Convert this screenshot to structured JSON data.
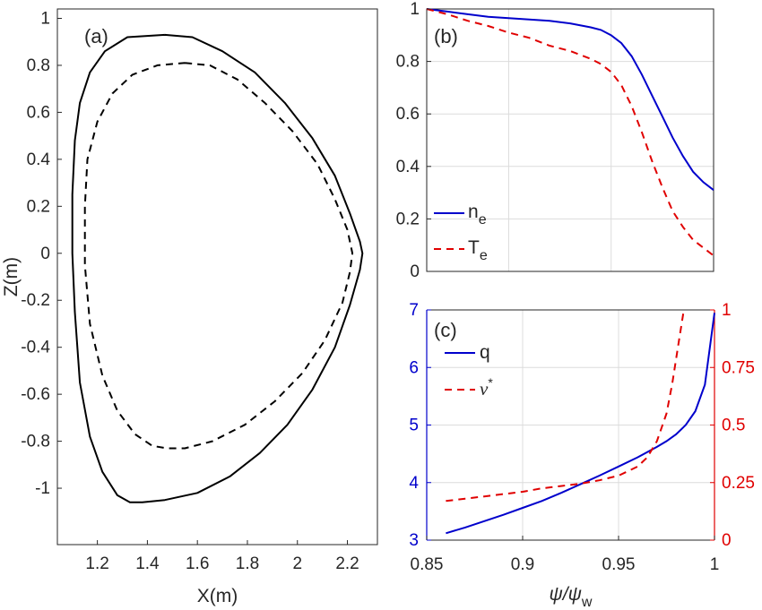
{
  "chart_data": [
    {
      "panel": "(a)",
      "type": "line",
      "xlabel": "X(m)",
      "ylabel": "Z(m)",
      "xlim": [
        1.04,
        2.32
      ],
      "ylim": [
        -1.24,
        1.04
      ],
      "xticks": [
        "1.2",
        "1.4",
        "1.6",
        "1.8",
        "2",
        "2.2"
      ],
      "yticks": [
        "1",
        "0.8",
        "0.6",
        "0.4",
        "0.2",
        "0",
        "-0.2",
        "-0.4",
        "-0.6",
        "-0.8",
        "-1"
      ],
      "grid": false,
      "series": [
        {
          "style": "solid",
          "color": "#000000",
          "x": [
            1.47,
            1.58,
            1.7,
            1.83,
            1.95,
            2.06,
            2.15,
            2.21,
            2.25,
            2.26,
            2.25,
            2.21,
            2.15,
            2.06,
            1.96,
            1.85,
            1.73,
            1.6,
            1.47,
            1.38,
            1.33,
            1.28,
            1.22,
            1.17,
            1.13,
            1.11,
            1.1,
            1.1,
            1.11,
            1.13,
            1.17,
            1.23,
            1.32,
            1.47
          ],
          "y": [
            0.93,
            0.92,
            0.86,
            0.77,
            0.64,
            0.49,
            0.33,
            0.17,
            0.05,
            0.0,
            -0.07,
            -0.22,
            -0.4,
            -0.58,
            -0.73,
            -0.85,
            -0.95,
            -1.02,
            -1.05,
            -1.06,
            -1.06,
            -1.03,
            -0.93,
            -0.78,
            -0.55,
            -0.25,
            0.0,
            0.25,
            0.48,
            0.64,
            0.77,
            0.86,
            0.92,
            0.93
          ]
        },
        {
          "style": "dashed",
          "color": "#000000",
          "x": [
            1.55,
            1.65,
            1.76,
            1.87,
            1.98,
            2.08,
            2.15,
            2.2,
            2.22,
            2.21,
            2.18,
            2.11,
            2.02,
            1.91,
            1.79,
            1.66,
            1.55,
            1.48,
            1.42,
            1.35,
            1.28,
            1.22,
            1.17,
            1.15,
            1.15,
            1.16,
            1.2,
            1.26,
            1.34,
            1.44,
            1.55
          ],
          "y": [
            0.81,
            0.8,
            0.74,
            0.64,
            0.52,
            0.38,
            0.23,
            0.1,
            0.0,
            -0.08,
            -0.21,
            -0.37,
            -0.51,
            -0.63,
            -0.73,
            -0.8,
            -0.83,
            -0.83,
            -0.82,
            -0.77,
            -0.67,
            -0.52,
            -0.3,
            -0.05,
            0.2,
            0.4,
            0.56,
            0.68,
            0.76,
            0.8,
            0.81
          ]
        }
      ],
      "annotations": [
        "(a)"
      ]
    },
    {
      "panel": "(b)",
      "type": "line",
      "xlim": [
        0.86,
        1.0
      ],
      "ylim": [
        0,
        1
      ],
      "xticks": [],
      "yticks": [
        "1",
        "0.8",
        "0.6",
        "0.4",
        "0.2",
        "0"
      ],
      "grid": true,
      "legend_position": "bottom-left",
      "series": [
        {
          "name": "n",
          "name_sub": "e",
          "style": "solid",
          "color": "#0000cc",
          "x": [
            0.86,
            0.87,
            0.88,
            0.89,
            0.9,
            0.91,
            0.92,
            0.93,
            0.94,
            0.945,
            0.95,
            0.955,
            0.96,
            0.965,
            0.97,
            0.975,
            0.98,
            0.985,
            0.99,
            0.995,
            1.0
          ],
          "y": [
            1.0,
            0.99,
            0.98,
            0.97,
            0.965,
            0.96,
            0.955,
            0.945,
            0.93,
            0.92,
            0.9,
            0.87,
            0.82,
            0.75,
            0.67,
            0.59,
            0.51,
            0.44,
            0.38,
            0.34,
            0.31
          ]
        },
        {
          "name": "T",
          "name_sub": "e",
          "style": "dashed",
          "color": "#e00000",
          "x": [
            0.86,
            0.87,
            0.88,
            0.89,
            0.9,
            0.91,
            0.92,
            0.93,
            0.94,
            0.945,
            0.95,
            0.955,
            0.96,
            0.965,
            0.97,
            0.975,
            0.98,
            0.985,
            0.99,
            0.995,
            1.0
          ],
          "y": [
            1.0,
            0.98,
            0.955,
            0.935,
            0.91,
            0.89,
            0.86,
            0.84,
            0.81,
            0.79,
            0.76,
            0.71,
            0.63,
            0.53,
            0.42,
            0.32,
            0.23,
            0.17,
            0.12,
            0.09,
            0.06
          ]
        }
      ],
      "annotations": [
        "(b)"
      ]
    },
    {
      "panel": "(c)",
      "type": "line",
      "xlabel": "ψ/ψ",
      "xlabel_sub": "w",
      "xlim": [
        0.85,
        1.0
      ],
      "ylim_left": [
        3,
        7
      ],
      "ylim_right": [
        0,
        1
      ],
      "xticks": [
        "0.85",
        "0.9",
        "0.95",
        "1"
      ],
      "yticks_left": [
        "7",
        "6",
        "5",
        "4",
        "3"
      ],
      "yticks_right": [
        "1",
        "0.75",
        "0.5",
        "0.25",
        "0"
      ],
      "grid": true,
      "legend_position": "top-left",
      "series": [
        {
          "name": "q",
          "axis": "left",
          "style": "solid",
          "color": "#0000cc",
          "x": [
            0.86,
            0.87,
            0.88,
            0.89,
            0.9,
            0.91,
            0.92,
            0.93,
            0.94,
            0.95,
            0.96,
            0.97,
            0.975,
            0.98,
            0.985,
            0.99,
            0.995,
            1.0
          ],
          "y": [
            3.12,
            3.22,
            3.33,
            3.44,
            3.56,
            3.68,
            3.82,
            3.97,
            4.12,
            4.28,
            4.44,
            4.62,
            4.72,
            4.84,
            5.0,
            5.24,
            5.7,
            6.95
          ]
        },
        {
          "name": "ν",
          "name_sup": "*",
          "axis": "right",
          "style": "dashed",
          "color": "#e00000",
          "x": [
            0.86,
            0.87,
            0.88,
            0.89,
            0.9,
            0.91,
            0.92,
            0.93,
            0.94,
            0.95,
            0.96,
            0.965,
            0.97,
            0.975,
            0.978,
            0.981,
            0.984
          ],
          "y": [
            0.17,
            0.18,
            0.19,
            0.2,
            0.21,
            0.225,
            0.235,
            0.245,
            0.26,
            0.28,
            0.32,
            0.36,
            0.43,
            0.55,
            0.68,
            0.84,
            1.0
          ]
        }
      ],
      "colors": {
        "left_axis": "#0000cc",
        "right_axis": "#e00000"
      },
      "annotations": [
        "(c)"
      ]
    }
  ]
}
